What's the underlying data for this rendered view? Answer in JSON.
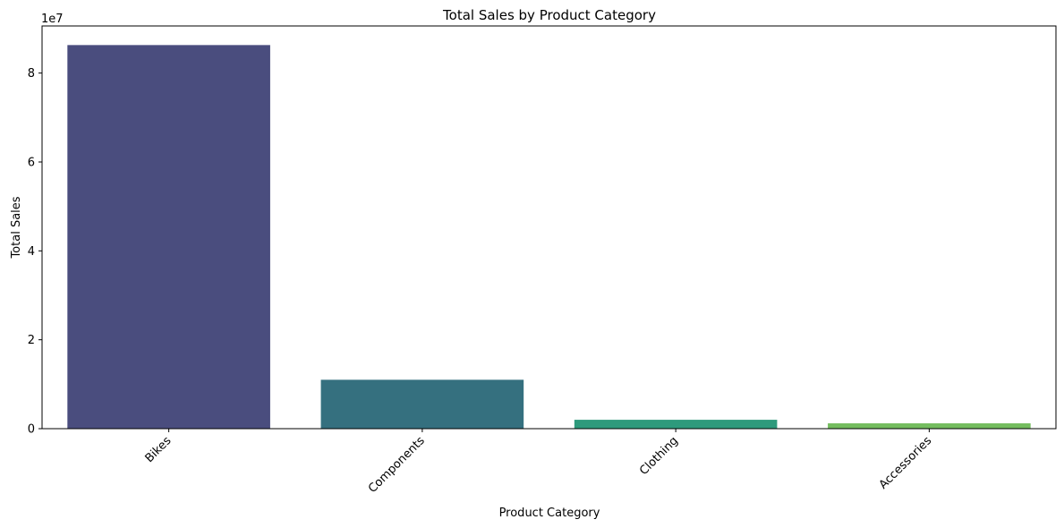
{
  "chart_data": {
    "type": "bar",
    "title": "Total Sales by Product Category",
    "xlabel": "Product Category",
    "ylabel": "Total Sales",
    "scale_label": "1e7",
    "categories": [
      "Bikes",
      "Components",
      "Clothing",
      "Accessories"
    ],
    "values": [
      86300000,
      11000000,
      2000000,
      1200000
    ],
    "colors": [
      "#4a4d7e",
      "#35707f",
      "#2e9a7c",
      "#74bd5f"
    ],
    "ylim": [
      0,
      90600000
    ],
    "y_ticks": [
      0,
      20000000,
      40000000,
      60000000,
      80000000
    ],
    "y_tick_labels": [
      "0",
      "2",
      "4",
      "6",
      "8"
    ],
    "x_tick_rotation": 45,
    "grid": false,
    "legend": "none"
  }
}
